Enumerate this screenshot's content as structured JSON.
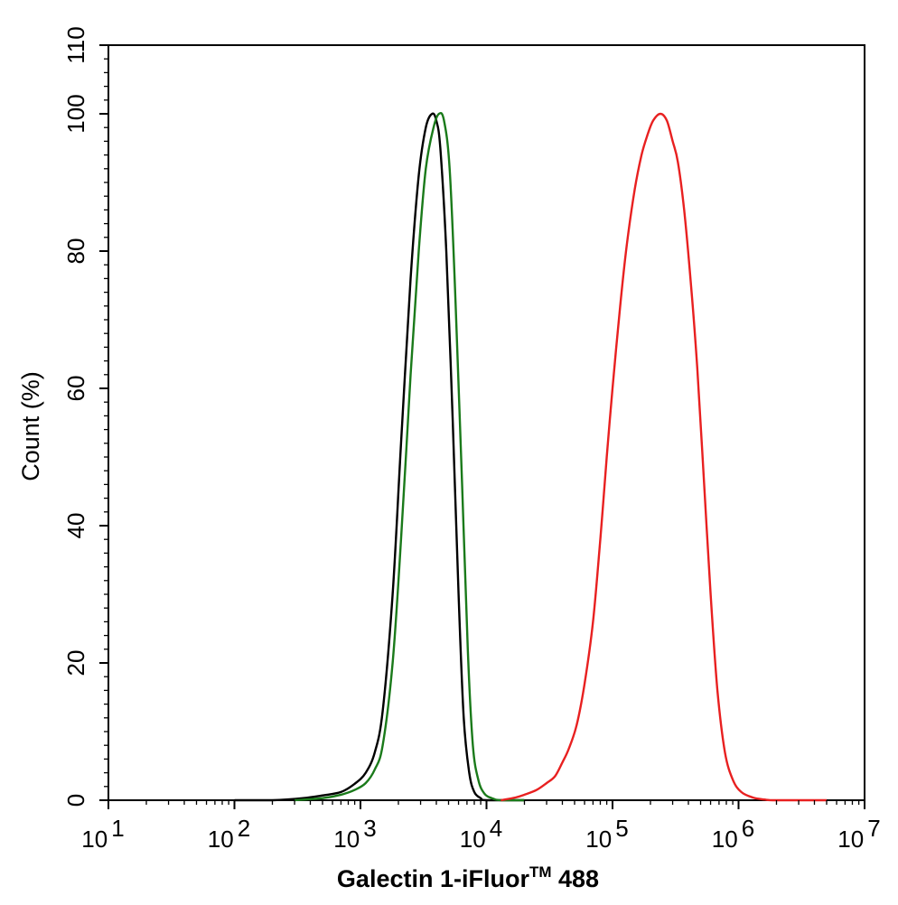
{
  "chart_data": {
    "type": "line",
    "title": "",
    "xlabel": "Galectin 1-iFluor™ 488",
    "xlabel_main": "Galectin 1-iFluor",
    "xlabel_tm": "TM",
    "xlabel_tail": " 488",
    "ylabel": "Count  (%)",
    "x_scale": "log",
    "xlim": [
      10,
      10000000
    ],
    "ylim": [
      0,
      110
    ],
    "x_tick_labels": [
      {
        "value": 10,
        "base": "10",
        "exp": "1"
      },
      {
        "value": 100,
        "base": "10",
        "exp": "2"
      },
      {
        "value": 1000,
        "base": "10",
        "exp": "3"
      },
      {
        "value": 10000,
        "base": "10",
        "exp": "4"
      },
      {
        "value": 100000,
        "base": "10",
        "exp": "5"
      },
      {
        "value": 1000000,
        "base": "10",
        "exp": "6"
      },
      {
        "value": 10000000,
        "base": "10",
        "exp": "7"
      }
    ],
    "y_ticks": [
      0,
      20,
      40,
      60,
      80,
      100,
      110
    ],
    "grid": false,
    "legend": "none",
    "series": [
      {
        "color": "#000000",
        "points": [
          [
            100,
            0
          ],
          [
            200,
            0
          ],
          [
            350,
            0.3
          ],
          [
            500,
            0.7
          ],
          [
            700,
            1.2
          ],
          [
            900,
            2.4
          ],
          [
            1100,
            4
          ],
          [
            1300,
            7
          ],
          [
            1500,
            13
          ],
          [
            1800,
            30
          ],
          [
            2100,
            52
          ],
          [
            2500,
            76
          ],
          [
            2900,
            91
          ],
          [
            3300,
            98
          ],
          [
            3700,
            100
          ],
          [
            4000,
            99
          ],
          [
            4300,
            95
          ],
          [
            4800,
            80
          ],
          [
            5400,
            55
          ],
          [
            6000,
            30
          ],
          [
            6600,
            12
          ],
          [
            7300,
            4
          ],
          [
            8000,
            1.2
          ],
          [
            9000,
            0.3
          ],
          [
            10000,
            0
          ],
          [
            20000,
            0
          ]
        ]
      },
      {
        "color": "#1a7a1a",
        "points": [
          [
            300,
            0
          ],
          [
            500,
            0.3
          ],
          [
            700,
            0.8
          ],
          [
            900,
            1.5
          ],
          [
            1100,
            2.5
          ],
          [
            1300,
            4.5
          ],
          [
            1500,
            8
          ],
          [
            1800,
            20
          ],
          [
            2100,
            38
          ],
          [
            2500,
            62
          ],
          [
            2900,
            80
          ],
          [
            3300,
            92
          ],
          [
            3800,
            98
          ],
          [
            4200,
            100
          ],
          [
            4600,
            99
          ],
          [
            5100,
            92
          ],
          [
            5700,
            72
          ],
          [
            6400,
            46
          ],
          [
            7100,
            22
          ],
          [
            7800,
            8
          ],
          [
            8600,
            3
          ],
          [
            9600,
            1
          ],
          [
            11000,
            0.3
          ],
          [
            13000,
            0
          ],
          [
            20000,
            0
          ]
        ]
      },
      {
        "color": "#e82020",
        "points": [
          [
            13000,
            0
          ],
          [
            17000,
            0.4
          ],
          [
            20000,
            0.8
          ],
          [
            25000,
            1.5
          ],
          [
            30000,
            2.5
          ],
          [
            35000,
            3.5
          ],
          [
            40000,
            5.5
          ],
          [
            45000,
            7.5
          ],
          [
            52000,
            11
          ],
          [
            60000,
            17
          ],
          [
            70000,
            26
          ],
          [
            80000,
            38
          ],
          [
            90000,
            50
          ],
          [
            100000,
            60
          ],
          [
            115000,
            72
          ],
          [
            130000,
            81
          ],
          [
            150000,
            89
          ],
          [
            170000,
            94
          ],
          [
            190000,
            97
          ],
          [
            210000,
            99
          ],
          [
            240000,
            100
          ],
          [
            270000,
            99
          ],
          [
            300000,
            96
          ],
          [
            330000,
            93
          ],
          [
            370000,
            86
          ],
          [
            420000,
            75
          ],
          [
            470000,
            63
          ],
          [
            530000,
            47
          ],
          [
            600000,
            30
          ],
          [
            680000,
            16
          ],
          [
            780000,
            7
          ],
          [
            900000,
            3
          ],
          [
            1050000,
            1.2
          ],
          [
            1300000,
            0.4
          ],
          [
            1600000,
            0.1
          ],
          [
            2000000,
            0
          ],
          [
            5000000,
            0
          ]
        ]
      }
    ]
  }
}
